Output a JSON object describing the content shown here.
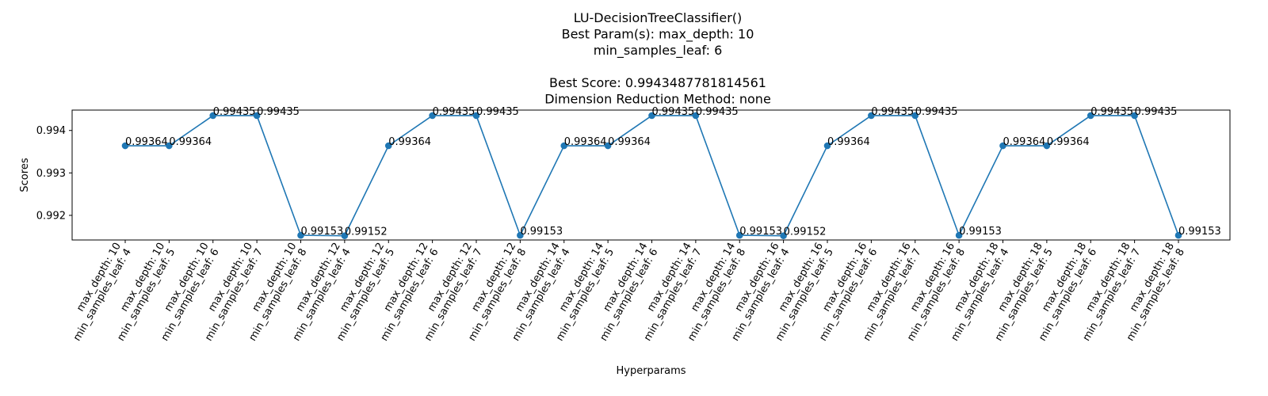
{
  "chart_data": {
    "type": "line",
    "title_lines": [
      "LU-DecisionTreeClassifier()",
      "Best Param(s): max_depth: 10",
      "min_samples_leaf: 6",
      "",
      "Best Score: 0.9943487781814561",
      "Dimension Reduction Method: none"
    ],
    "xlabel": "Hyperparams",
    "ylabel": "Scores",
    "ylim": [
      0.99142,
      0.99448
    ],
    "yticks": [
      "0.992",
      "0.993",
      "0.994"
    ],
    "categories": [
      [
        "max_depth: 10",
        "min_samples_leaf: 4"
      ],
      [
        "max_depth: 10",
        "min_samples_leaf: 5"
      ],
      [
        "max_depth: 10",
        "min_samples_leaf: 6"
      ],
      [
        "max_depth: 10",
        "min_samples_leaf: 7"
      ],
      [
        "max_depth: 10",
        "min_samples_leaf: 8"
      ],
      [
        "max_depth: 12",
        "min_samples_leaf: 4"
      ],
      [
        "max_depth: 12",
        "min_samples_leaf: 5"
      ],
      [
        "max_depth: 12",
        "min_samples_leaf: 6"
      ],
      [
        "max_depth: 12",
        "min_samples_leaf: 7"
      ],
      [
        "max_depth: 12",
        "min_samples_leaf: 8"
      ],
      [
        "max_depth: 14",
        "min_samples_leaf: 4"
      ],
      [
        "max_depth: 14",
        "min_samples_leaf: 5"
      ],
      [
        "max_depth: 14",
        "min_samples_leaf: 6"
      ],
      [
        "max_depth: 14",
        "min_samples_leaf: 7"
      ],
      [
        "max_depth: 14",
        "min_samples_leaf: 8"
      ],
      [
        "max_depth: 16",
        "min_samples_leaf: 4"
      ],
      [
        "max_depth: 16",
        "min_samples_leaf: 5"
      ],
      [
        "max_depth: 16",
        "min_samples_leaf: 6"
      ],
      [
        "max_depth: 16",
        "min_samples_leaf: 7"
      ],
      [
        "max_depth: 16",
        "min_samples_leaf: 8"
      ],
      [
        "max_depth: 18",
        "min_samples_leaf: 4"
      ],
      [
        "max_depth: 18",
        "min_samples_leaf: 5"
      ],
      [
        "max_depth: 18",
        "min_samples_leaf: 6"
      ],
      [
        "max_depth: 18",
        "min_samples_leaf: 7"
      ],
      [
        "max_depth: 18",
        "min_samples_leaf: 8"
      ]
    ],
    "values": [
      0.99364,
      0.99364,
      0.99435,
      0.99435,
      0.99153,
      0.99152,
      0.99364,
      0.99435,
      0.99435,
      0.99153,
      0.99364,
      0.99364,
      0.99435,
      0.99435,
      0.99153,
      0.99152,
      0.99364,
      0.99435,
      0.99435,
      0.99153,
      0.99364,
      0.99364,
      0.99435,
      0.99435,
      0.99153
    ],
    "value_labels": [
      "0.99364",
      "0.99364",
      "0.99435",
      "0.99435",
      "0.99153",
      "0.99152",
      "0.99364",
      "0.99435",
      "0.99435",
      "0.99153",
      "0.99364",
      "0.99364",
      "0.99435",
      "0.99435",
      "0.99153",
      "0.99152",
      "0.99364",
      "0.99435",
      "0.99435",
      "0.99153",
      "0.99364",
      "0.99364",
      "0.99435",
      "0.99435",
      "0.99153"
    ],
    "grid": false,
    "line_color": "#1f77b4",
    "marker": "circle"
  }
}
